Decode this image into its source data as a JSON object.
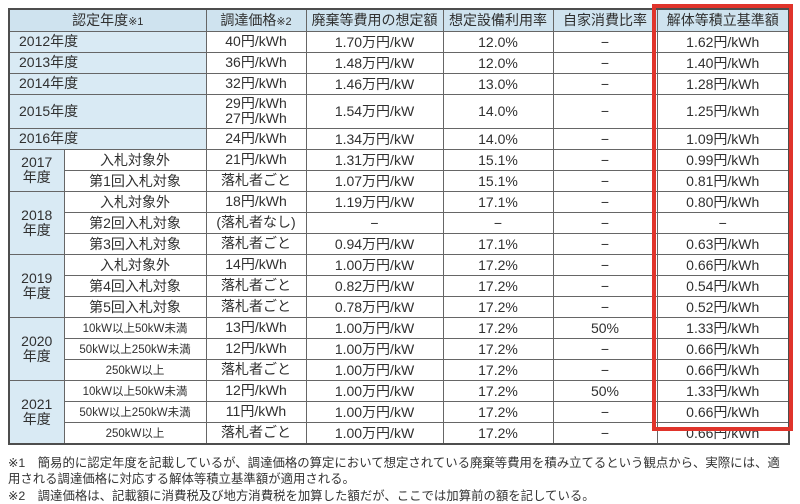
{
  "colors": {
    "highlight_border": "#e0342b",
    "header_bg": "#cfe3ef",
    "year_bg": "#d9eaf4",
    "grid_line": "#666666",
    "text": "#303030"
  },
  "table": {
    "headers": [
      {
        "label": "認定年度",
        "note": "※1"
      },
      {
        "label": "調達価格",
        "note": "※2"
      },
      {
        "label": "廃棄等費用の想定額",
        "note": ""
      },
      {
        "label": "想定設備利用率",
        "note": ""
      },
      {
        "label": "自家消費比率",
        "note": ""
      },
      {
        "label": "解体等積立基準額",
        "note": ""
      }
    ],
    "groups": [
      {
        "year": "2012年度",
        "rows": [
          {
            "price": "40円/kWh",
            "waste": "1.70万円/kW",
            "util": "12.0%",
            "self": "−",
            "reserve": "1.62円/kWh"
          }
        ]
      },
      {
        "year": "2013年度",
        "rows": [
          {
            "price": "36円/kWh",
            "waste": "1.48万円/kW",
            "util": "12.0%",
            "self": "−",
            "reserve": "1.40円/kWh"
          }
        ]
      },
      {
        "year": "2014年度",
        "rows": [
          {
            "price": "32円/kWh",
            "waste": "1.46万円/kW",
            "util": "13.0%",
            "self": "−",
            "reserve": "1.28円/kWh"
          }
        ]
      },
      {
        "year": "2015年度",
        "tall": true,
        "rows": [
          {
            "price": "29円/kWh\n27円/kWh",
            "waste": "1.54万円/kW",
            "util": "14.0%",
            "self": "−",
            "reserve": "1.25円/kWh"
          }
        ]
      },
      {
        "year": "2016年度",
        "rows": [
          {
            "price": "24円/kWh",
            "waste": "1.34万円/kW",
            "util": "14.0%",
            "self": "−",
            "reserve": "1.09円/kWh"
          }
        ]
      },
      {
        "year": "2017\n年度",
        "rows": [
          {
            "sub": "入札対象外",
            "price": "21円/kWh",
            "waste": "1.31万円/kW",
            "util": "15.1%",
            "self": "−",
            "reserve": "0.99円/kWh"
          },
          {
            "sub": "第1回入札対象",
            "price": "落札者ごと",
            "waste": "1.07万円/kW",
            "util": "15.1%",
            "self": "−",
            "reserve": "0.81円/kWh"
          }
        ]
      },
      {
        "year": "2018\n年度",
        "rows": [
          {
            "sub": "入札対象外",
            "price": "18円/kWh",
            "waste": "1.19万円/kW",
            "util": "17.1%",
            "self": "−",
            "reserve": "0.80円/kWh"
          },
          {
            "sub": "第2回入札対象",
            "price": "(落札者なし)",
            "waste": "−",
            "util": "−",
            "self": "−",
            "reserve": "−"
          },
          {
            "sub": "第3回入札対象",
            "price": "落札者ごと",
            "waste": "0.94万円/kW",
            "util": "17.1%",
            "self": "−",
            "reserve": "0.63円/kWh"
          }
        ]
      },
      {
        "year": "2019\n年度",
        "rows": [
          {
            "sub": "入札対象外",
            "price": "14円/kWh",
            "waste": "1.00万円/kW",
            "util": "17.2%",
            "self": "−",
            "reserve": "0.66円/kWh"
          },
          {
            "sub": "第4回入札対象",
            "price": "落札者ごと",
            "waste": "0.82万円/kW",
            "util": "17.2%",
            "self": "−",
            "reserve": "0.54円/kWh"
          },
          {
            "sub": "第5回入札対象",
            "price": "落札者ごと",
            "waste": "0.78万円/kW",
            "util": "17.2%",
            "self": "−",
            "reserve": "0.52円/kWh"
          }
        ]
      },
      {
        "year": "2020\n年度",
        "rows": [
          {
            "sub": "10kW以上50kW未満",
            "price": "13円/kWh",
            "waste": "1.00万円/kW",
            "util": "17.2%",
            "self": "50%",
            "reserve": "1.33円/kWh"
          },
          {
            "sub": "50kW以上250kW未満",
            "price": "12円/kWh",
            "waste": "1.00万円/kW",
            "util": "17.2%",
            "self": "−",
            "reserve": "0.66円/kWh"
          },
          {
            "sub": "250kW以上",
            "price": "落札者ごと",
            "waste": "1.00万円/kW",
            "util": "17.2%",
            "self": "−",
            "reserve": "0.66円/kWh"
          }
        ]
      },
      {
        "year": "2021\n年度",
        "rows": [
          {
            "sub": "10kW以上50kW未満",
            "price": "12円/kWh",
            "waste": "1.00万円/kW",
            "util": "17.2%",
            "self": "50%",
            "reserve": "1.33円/kWh"
          },
          {
            "sub": "50kW以上250kW未満",
            "price": "11円/kWh",
            "waste": "1.00万円/kW",
            "util": "17.2%",
            "self": "−",
            "reserve": "0.66円/kWh"
          },
          {
            "sub": "250kW以上",
            "price": "落札者ごと",
            "waste": "1.00万円/kW",
            "util": "17.2%",
            "self": "−",
            "reserve": "0.66円/kWh"
          }
        ]
      }
    ]
  },
  "footnotes": [
    "※1　簡易的に認定年度を記載しているが、調達価格の算定において想定されている廃棄等費用を積み立てるという観点から、実際には、適用される調達価格に対応する解体等積立基準額が適用される。",
    "※2　調達価格は、記載額に消費税及び地方消費税を加算した額だが、ここでは加算前の額を記している。"
  ]
}
